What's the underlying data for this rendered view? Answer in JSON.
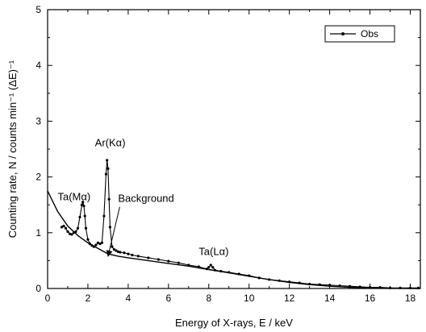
{
  "chart_data": {
    "type": "line",
    "xlabel": "Energy of X-rays, E / keV",
    "ylabel": "Counting rate, N / counts min⁻¹ (ΔE)⁻¹",
    "xlim": [
      0,
      18.5
    ],
    "ylim": [
      0,
      5
    ],
    "xticks": [
      0,
      2,
      4,
      6,
      8,
      10,
      12,
      14,
      16,
      18
    ],
    "yticks": [
      0,
      1,
      2,
      3,
      4,
      5
    ],
    "grid": false,
    "legend": {
      "position": "top-right",
      "entries": [
        "Obs"
      ]
    },
    "series": [
      {
        "name": "Obs",
        "style": "line-with-markers",
        "color": "#000000",
        "points": [
          [
            0.7,
            1.1
          ],
          [
            0.8,
            1.12
          ],
          [
            0.9,
            1.08
          ],
          [
            1.0,
            1.02
          ],
          [
            1.1,
            0.98
          ],
          [
            1.2,
            0.97
          ],
          [
            1.3,
            1.0
          ],
          [
            1.4,
            1.02
          ],
          [
            1.5,
            1.08
          ],
          [
            1.6,
            1.28
          ],
          [
            1.7,
            1.5
          ],
          [
            1.75,
            1.55
          ],
          [
            1.8,
            1.48
          ],
          [
            1.85,
            1.3
          ],
          [
            1.9,
            1.08
          ],
          [
            2.0,
            0.88
          ],
          [
            2.1,
            0.8
          ],
          [
            2.2,
            0.77
          ],
          [
            2.3,
            0.75
          ],
          [
            2.4,
            0.78
          ],
          [
            2.5,
            0.82
          ],
          [
            2.6,
            0.8
          ],
          [
            2.7,
            0.82
          ],
          [
            2.8,
            1.3
          ],
          [
            2.9,
            2.05
          ],
          [
            2.95,
            2.3
          ],
          [
            3.0,
            2.15
          ],
          [
            3.05,
            1.6
          ],
          [
            3.1,
            1.1
          ],
          [
            3.2,
            0.75
          ],
          [
            3.3,
            0.7
          ],
          [
            3.4,
            0.68
          ],
          [
            3.5,
            0.66
          ],
          [
            3.6,
            0.65
          ],
          [
            3.8,
            0.64
          ],
          [
            4.0,
            0.62
          ],
          [
            4.2,
            0.6
          ],
          [
            4.5,
            0.58
          ],
          [
            5.0,
            0.55
          ],
          [
            5.5,
            0.52
          ],
          [
            6.0,
            0.49
          ],
          [
            6.5,
            0.46
          ],
          [
            7.0,
            0.42
          ],
          [
            7.5,
            0.39
          ],
          [
            7.9,
            0.35
          ],
          [
            8.0,
            0.38
          ],
          [
            8.1,
            0.42
          ],
          [
            8.2,
            0.38
          ],
          [
            8.3,
            0.33
          ],
          [
            8.6,
            0.31
          ],
          [
            9.0,
            0.29
          ],
          [
            9.5,
            0.26
          ],
          [
            10.0,
            0.23
          ],
          [
            10.5,
            0.19
          ],
          [
            11.0,
            0.16
          ],
          [
            11.5,
            0.14
          ],
          [
            12.0,
            0.12
          ],
          [
            12.5,
            0.1
          ],
          [
            13.0,
            0.08
          ],
          [
            13.5,
            0.07
          ],
          [
            14.0,
            0.06
          ],
          [
            14.5,
            0.05
          ],
          [
            15.0,
            0.04
          ],
          [
            15.5,
            0.03
          ],
          [
            16.0,
            0.02
          ],
          [
            16.5,
            0.02
          ],
          [
            17.0,
            0.01
          ],
          [
            17.5,
            0.01
          ],
          [
            18.0,
            0.01
          ],
          [
            18.4,
            0.01
          ]
        ]
      },
      {
        "name": "Background",
        "style": "line",
        "color": "#000000",
        "points": [
          [
            0.0,
            1.75
          ],
          [
            0.5,
            1.38
          ],
          [
            1.0,
            1.12
          ],
          [
            1.5,
            0.95
          ],
          [
            2.0,
            0.82
          ],
          [
            2.5,
            0.72
          ],
          [
            3.0,
            0.62
          ],
          [
            3.5,
            0.58
          ],
          [
            4.0,
            0.55
          ],
          [
            5.0,
            0.5
          ],
          [
            6.0,
            0.45
          ],
          [
            7.0,
            0.4
          ],
          [
            8.0,
            0.34
          ],
          [
            9.0,
            0.28
          ],
          [
            10.0,
            0.22
          ],
          [
            11.0,
            0.16
          ],
          [
            12.0,
            0.11
          ],
          [
            13.0,
            0.07
          ],
          [
            14.0,
            0.04
          ],
          [
            15.0,
            0.02
          ],
          [
            16.0,
            0.01
          ],
          [
            17.0,
            0.005
          ],
          [
            18.5,
            0.0
          ]
        ]
      }
    ],
    "annotations": [
      {
        "text": "Ta(Mα)",
        "x": 0.5,
        "y": 1.58
      },
      {
        "text": "Ar(Kα)",
        "x": 2.35,
        "y": 2.55
      },
      {
        "text": "Background",
        "x": 3.5,
        "y": 1.55,
        "arrow_to": [
          3.0,
          0.58
        ]
      },
      {
        "text": "Ta(Lα)",
        "x": 7.5,
        "y": 0.6
      }
    ]
  }
}
